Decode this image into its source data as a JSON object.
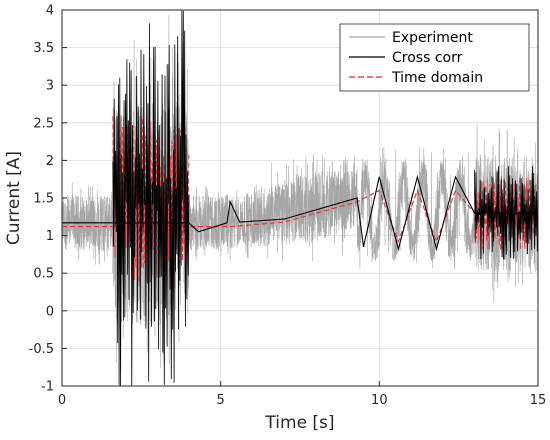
{
  "chart_data": {
    "type": "line",
    "xlabel": "Time [s]",
    "ylabel": "Current [A]",
    "xlim": [
      0,
      15
    ],
    "ylim": [
      -1,
      4
    ],
    "x_ticks": [
      "0",
      "5",
      "10",
      "15"
    ],
    "y_ticks": [
      "-1",
      "-0.5",
      "0",
      "0.5",
      "1",
      "1.5",
      "2",
      "2.5",
      "3",
      "3.5",
      "4"
    ],
    "grid": true,
    "legend_position": "top-right",
    "colors": {
      "experiment": "#a6a6a6",
      "cross_corr": "#000000",
      "time_domain": "#e8282d"
    },
    "series": [
      {
        "name": "Experiment",
        "style": "solid",
        "segments": [
          {
            "t_start": 0.0,
            "t_end": 1.6,
            "mean": 1.17,
            "min": 0.6,
            "max": 1.8
          },
          {
            "t_start": 1.6,
            "t_end": 4.0,
            "mean": 1.3,
            "min": -1.0,
            "max": 4.0
          },
          {
            "t_start": 4.0,
            "t_end": 5.3,
            "mean": 1.17,
            "min": 0.6,
            "max": 1.85
          },
          {
            "t_start": 5.3,
            "t_end": 9.3,
            "mean_start": 1.15,
            "mean_end": 1.5,
            "min": 0.65,
            "max": 2.1
          },
          {
            "t_start": 9.3,
            "t_end": 13.0,
            "mean": 1.3,
            "min": 0.55,
            "max": 2.2
          },
          {
            "t_start": 13.0,
            "t_end": 15.0,
            "mean": 1.3,
            "min": 0.1,
            "max": 2.6
          }
        ]
      },
      {
        "name": "Cross corr",
        "style": "solid",
        "points": [
          {
            "x": 0.0,
            "y": 1.17
          },
          {
            "x": 1.6,
            "y": 1.17
          },
          {
            "x": 4.0,
            "y": 1.17
          },
          {
            "x": 4.3,
            "y": 1.05
          },
          {
            "x": 5.2,
            "y": 1.17
          },
          {
            "x": 5.3,
            "y": 1.45
          },
          {
            "x": 5.6,
            "y": 1.18
          },
          {
            "x": 7.0,
            "y": 1.22
          },
          {
            "x": 9.3,
            "y": 1.5
          },
          {
            "x": 9.5,
            "y": 0.85
          },
          {
            "x": 10.0,
            "y": 1.78
          },
          {
            "x": 10.6,
            "y": 0.82
          },
          {
            "x": 11.2,
            "y": 1.78
          },
          {
            "x": 11.8,
            "y": 0.82
          },
          {
            "x": 12.4,
            "y": 1.78
          },
          {
            "x": 13.0,
            "y": 1.3
          },
          {
            "x": 15.0,
            "y": 1.3
          }
        ],
        "bands": [
          {
            "t_start": 1.6,
            "t_end": 4.0,
            "min": -1.0,
            "max": 4.0
          },
          {
            "t_start": 13.0,
            "t_end": 15.0,
            "min": 0.68,
            "max": 1.95
          }
        ]
      },
      {
        "name": "Time domain",
        "style": "dashed",
        "points": [
          {
            "x": 0.0,
            "y": 1.12
          },
          {
            "x": 1.6,
            "y": 1.12
          },
          {
            "x": 4.0,
            "y": 1.12
          },
          {
            "x": 5.3,
            "y": 1.12
          },
          {
            "x": 7.0,
            "y": 1.18
          },
          {
            "x": 9.3,
            "y": 1.45
          },
          {
            "x": 10.0,
            "y": 1.6
          },
          {
            "x": 10.6,
            "y": 0.92
          },
          {
            "x": 11.2,
            "y": 1.6
          },
          {
            "x": 11.8,
            "y": 0.92
          },
          {
            "x": 12.4,
            "y": 1.6
          },
          {
            "x": 13.0,
            "y": 1.3
          },
          {
            "x": 15.0,
            "y": 1.3
          }
        ],
        "bands": [
          {
            "t_start": 1.6,
            "t_end": 4.0,
            "min": 0.25,
            "max": 2.6
          },
          {
            "t_start": 13.0,
            "t_end": 15.0,
            "min": 0.8,
            "max": 1.8
          }
        ]
      }
    ]
  }
}
